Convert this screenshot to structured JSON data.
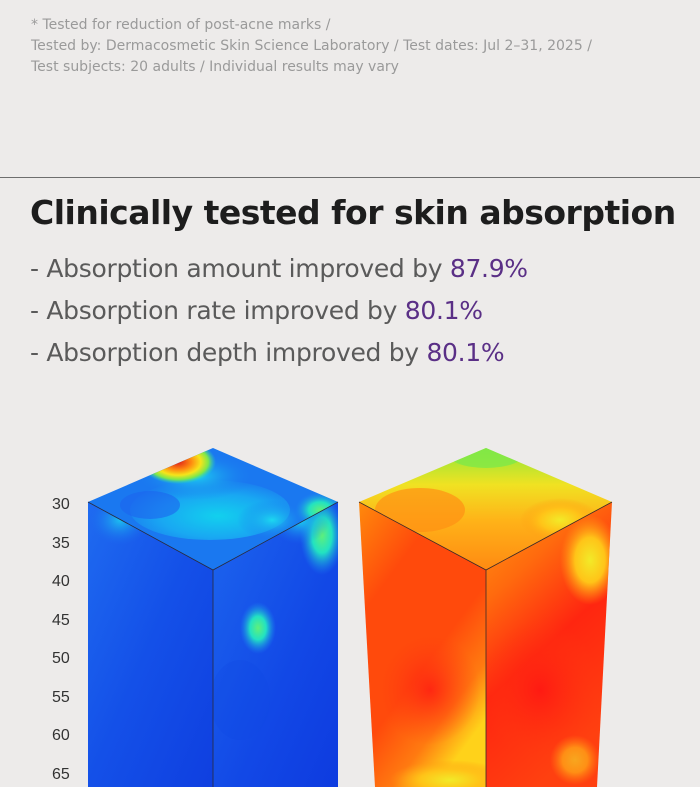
{
  "footnote": {
    "line1": "* Tested for reduction of post-acne marks /",
    "line2": "Tested by: Dermacosmetic Skin Science Laboratory / Test dates: Jul 2–31, 2025 /",
    "line3": "Test subjects: 20 adults / Individual results may vary"
  },
  "headline": "Clinically tested for skin absorption",
  "claims": [
    {
      "text": "- Absorption amount improved by ",
      "value": "87.9%"
    },
    {
      "text": "- Absorption rate improved by ",
      "value": "80.1%"
    },
    {
      "text": "- Absorption depth improved by ",
      "value": "80.1%"
    }
  ],
  "depth_ticks": [
    "30",
    "35",
    "40",
    "45",
    "50",
    "55",
    "60",
    "65"
  ],
  "colors": {
    "accent": "#5a2f86",
    "before_cube": "#1552e6",
    "after_cube": "#ff2a10"
  }
}
